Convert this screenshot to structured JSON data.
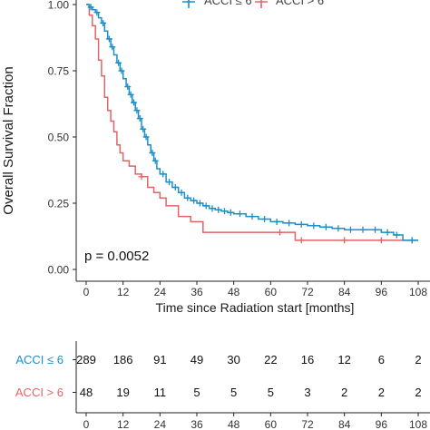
{
  "chart_data": {
    "type": "line",
    "ylabel": "Overall Survival Fraction",
    "xlabel": "Time since Radiation start [months]",
    "xlim": [
      0,
      108
    ],
    "ylim": [
      0,
      1
    ],
    "x_ticks": [
      "0",
      "12",
      "24",
      "36",
      "48",
      "60",
      "72",
      "84",
      "96",
      "108"
    ],
    "y_ticks": [
      "0.00",
      "0.25",
      "0.50",
      "0.75",
      "1.00"
    ],
    "grid": false,
    "legend_position": "top",
    "annotation": "p = 0.0052",
    "series": [
      {
        "name": "ACCI ≤ 6",
        "color": "#1a8fc9",
        "step_x": [
          0,
          1,
          2,
          3,
          4,
          5,
          6,
          7,
          8,
          9,
          10,
          11,
          12,
          13,
          14,
          15,
          16,
          17,
          18,
          19,
          20,
          21,
          22,
          23,
          24,
          26,
          28,
          30,
          32,
          34,
          36,
          38,
          40,
          42,
          44,
          46,
          48,
          52,
          56,
          60,
          64,
          68,
          72,
          76,
          80,
          84,
          88,
          92,
          96,
          100,
          103,
          108
        ],
        "step_y": [
          1.0,
          0.99,
          0.98,
          0.97,
          0.95,
          0.93,
          0.9,
          0.87,
          0.84,
          0.81,
          0.78,
          0.75,
          0.72,
          0.69,
          0.66,
          0.63,
          0.6,
          0.57,
          0.53,
          0.5,
          0.47,
          0.44,
          0.41,
          0.38,
          0.36,
          0.33,
          0.31,
          0.29,
          0.27,
          0.26,
          0.25,
          0.24,
          0.23,
          0.225,
          0.22,
          0.215,
          0.21,
          0.2,
          0.19,
          0.18,
          0.175,
          0.17,
          0.165,
          0.16,
          0.155,
          0.15,
          0.15,
          0.15,
          0.14,
          0.13,
          0.11,
          0.11
        ],
        "censor_x": [
          1.5,
          3.5,
          5.5,
          7.5,
          8.5,
          10.5,
          11.5,
          13.5,
          14.5,
          15.5,
          16.5,
          17.5,
          18.5,
          19.5,
          21.5,
          22.5,
          25,
          27,
          29,
          31,
          33,
          35,
          37,
          39,
          41,
          43,
          45,
          47,
          50,
          54,
          58,
          62,
          66,
          70,
          74,
          78,
          82,
          86,
          90,
          94,
          98,
          101,
          106
        ]
      },
      {
        "name": "ACCI > 6",
        "color": "#e06666",
        "step_x": [
          0,
          1,
          2,
          3,
          4,
          5,
          6,
          7,
          8,
          9,
          10,
          11,
          12,
          14,
          16,
          18,
          20,
          22,
          24,
          26,
          30,
          34,
          38,
          60,
          68,
          108
        ],
        "step_y": [
          1.0,
          0.96,
          0.92,
          0.87,
          0.79,
          0.73,
          0.65,
          0.6,
          0.56,
          0.52,
          0.47,
          0.44,
          0.41,
          0.39,
          0.36,
          0.35,
          0.31,
          0.29,
          0.27,
          0.24,
          0.2,
          0.18,
          0.14,
          0.14,
          0.11,
          0.11
        ],
        "censor_x": [
          18,
          63,
          70,
          84,
          96,
          106
        ]
      }
    ],
    "risk_table": {
      "x_ticks": [
        "0",
        "12",
        "24",
        "36",
        "48",
        "60",
        "72",
        "84",
        "96",
        "108"
      ],
      "rows": [
        {
          "label": "ACCI ≤ 6",
          "color": "#1a8fc9",
          "values": [
            "289",
            "186",
            "91",
            "49",
            "30",
            "22",
            "16",
            "12",
            "6",
            "2"
          ]
        },
        {
          "label": "ACCI > 6",
          "color": "#e06666",
          "values": [
            "48",
            "19",
            "11",
            "5",
            "5",
            "5",
            "3",
            "2",
            "2",
            "2"
          ]
        }
      ]
    }
  }
}
